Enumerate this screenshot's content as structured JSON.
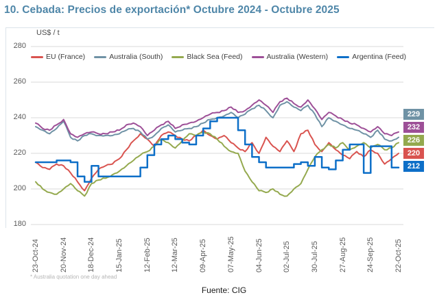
{
  "header": {
    "title": "10. Cebada: Precios de exportación* Octubre 2024 - Octubre 2025"
  },
  "chart_data": {
    "type": "line",
    "title": "10. Cebada: Precios de exportación* Octubre 2024 - Octubre 2025",
    "ylabel": "US$ / t",
    "xlabel": "",
    "ylim": [
      180,
      280
    ],
    "grid": true,
    "legend_position": "top",
    "y_ticks": [
      280,
      260,
      240,
      220,
      200,
      180
    ],
    "x_tick_labels": [
      "23-Oct-24",
      "20-Nov-24",
      "18-Dec-24",
      "15-Jan-25",
      "12-Feb-25",
      "12-Mar-25",
      "09-Apr-25",
      "07-May-25",
      "04-Jun-25",
      "02-Jul-25",
      "30-Jul-25",
      "27-Aug-25",
      "24-Sep-25",
      "22-Oct-25"
    ],
    "x_unit": "weekly points, 23-Oct-24 through 22-Oct-25",
    "series": [
      {
        "name": "EU (France)",
        "color": "#d9534f",
        "style": "linear",
        "end_value": 220,
        "values": [
          215,
          212,
          211,
          214,
          213,
          209,
          204,
          199,
          206,
          211,
          213,
          214,
          217,
          222,
          227,
          231,
          228,
          224,
          230,
          232,
          230,
          228,
          227,
          230,
          233,
          230,
          228,
          230,
          226,
          223,
          221,
          226,
          220,
          229,
          224,
          221,
          227,
          221,
          231,
          233,
          225,
          221,
          226,
          222,
          219,
          217,
          221,
          218,
          222,
          220,
          214,
          217,
          220
        ]
      },
      {
        "name": "Australia (South)",
        "color": "#6f92a5",
        "style": "linear",
        "end_value": 229,
        "values": [
          235,
          233,
          231,
          234,
          238,
          229,
          227,
          230,
          231,
          230,
          230,
          230,
          231,
          233,
          234,
          232,
          228,
          230,
          234,
          236,
          232,
          233,
          234,
          235,
          237,
          239,
          240,
          241,
          243,
          240,
          242,
          245,
          247,
          244,
          240,
          247,
          249,
          246,
          244,
          247,
          242,
          235,
          240,
          238,
          236,
          234,
          233,
          231,
          229,
          233,
          228,
          227,
          229
        ]
      },
      {
        "name": "Black Sea (Feed)",
        "color": "#94a94e",
        "style": "linear",
        "end_value": 226,
        "values": [
          204,
          200,
          198,
          197,
          200,
          203,
          199,
          196,
          203,
          205,
          206,
          208,
          210,
          213,
          216,
          219,
          221,
          224,
          228,
          226,
          223,
          227,
          231,
          230,
          232,
          231,
          228,
          224,
          221,
          220,
          210,
          204,
          199,
          198,
          200,
          197,
          196,
          200,
          203,
          211,
          218,
          222,
          225,
          223,
          226,
          222,
          224,
          226,
          223,
          225,
          222,
          223,
          226
        ]
      },
      {
        "name": "Australia (Western)",
        "color": "#9d4f97",
        "style": "linear",
        "end_value": 232,
        "values": [
          237,
          234,
          233,
          236,
          239,
          231,
          229,
          231,
          232,
          231,
          231,
          232,
          233,
          236,
          237,
          235,
          230,
          233,
          236,
          238,
          234,
          236,
          237,
          238,
          240,
          242,
          243,
          244,
          246,
          243,
          244,
          247,
          250,
          247,
          243,
          249,
          251,
          248,
          246,
          250,
          245,
          239,
          243,
          241,
          239,
          237,
          236,
          234,
          232,
          235,
          231,
          230,
          232
        ]
      },
      {
        "name": "Argentina (Feed)",
        "color": "#0d6fc8",
        "style": "step",
        "end_value": 212,
        "values": [
          215,
          215,
          215,
          216,
          216,
          215,
          207,
          204,
          213,
          207,
          207,
          207,
          207,
          207,
          207,
          212,
          219,
          225,
          228,
          230,
          228,
          226,
          225,
          230,
          234,
          238,
          240,
          240,
          240,
          233,
          225,
          218,
          215,
          212,
          212,
          212,
          212,
          214,
          215,
          213,
          218,
          212,
          211,
          216,
          222,
          225,
          225,
          209,
          224,
          224,
          224,
          212,
          212
        ]
      }
    ],
    "end_labels": [
      {
        "value": "229",
        "color": "#6f92a5"
      },
      {
        "value": "232",
        "color": "#9d4f97"
      },
      {
        "value": "226",
        "color": "#94a94e"
      },
      {
        "value": "220",
        "color": "#d9534f"
      },
      {
        "value": "212",
        "color": "#0d6fc8"
      }
    ]
  },
  "footnote": "* Australia quotation one day ahead",
  "source": "Fuente: CIG",
  "colors": {
    "title": "#4e86a8",
    "grid": "#d9d9d9",
    "axis_text": "#595959",
    "frame": "#dbe4ea"
  }
}
